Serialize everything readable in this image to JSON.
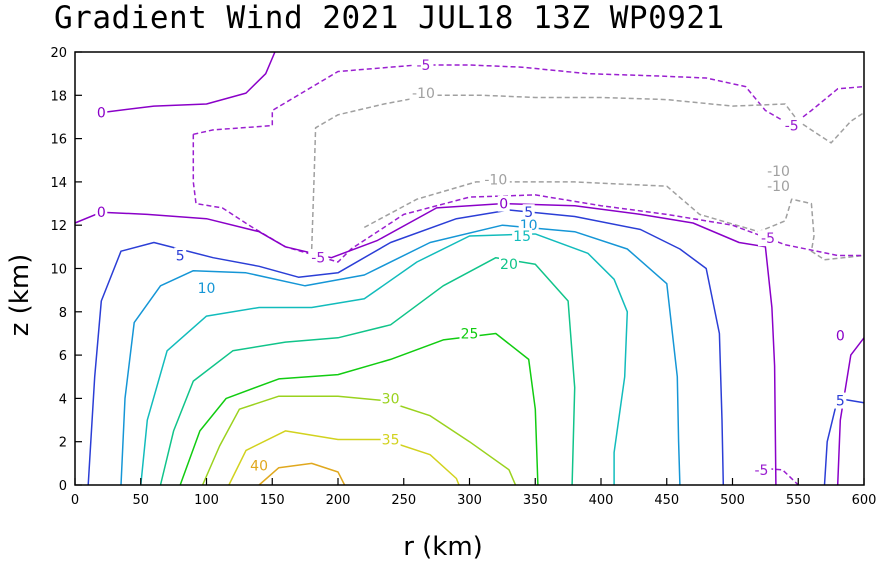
{
  "chart_data": {
    "type": "contour",
    "title": "Gradient Wind 2021 JUL18 13Z   WP0921",
    "xlabel": "r (km)",
    "ylabel": "z (km)",
    "xlim": [
      0,
      600
    ],
    "ylim": [
      0,
      20
    ],
    "x_ticks": [
      "0",
      "50",
      "100",
      "150",
      "200",
      "250",
      "300",
      "350",
      "400",
      "450",
      "500",
      "550",
      "600"
    ],
    "y_ticks": [
      "0",
      "2",
      "4",
      "6",
      "8",
      "10",
      "12",
      "14",
      "16",
      "18",
      "20"
    ],
    "grid": false,
    "contour_levels": [
      {
        "level": -10,
        "label": "-10",
        "color": "#a0a0a0",
        "dashed": true
      },
      {
        "level": -5,
        "label": "-5",
        "color": "#9a1fd0",
        "dashed": true
      },
      {
        "level": 0,
        "label": "0",
        "color": "#8a00c8",
        "dashed": false
      },
      {
        "level": 5,
        "label": "5",
        "color": "#2b3ed6",
        "dashed": false
      },
      {
        "level": 10,
        "label": "10",
        "color": "#1596d6",
        "dashed": false
      },
      {
        "level": 15,
        "label": "15",
        "color": "#12bcbc",
        "dashed": false
      },
      {
        "level": 20,
        "label": "20",
        "color": "#10c48a",
        "dashed": false
      },
      {
        "level": 25,
        "label": "25",
        "color": "#11cc11",
        "dashed": false
      },
      {
        "level": 30,
        "label": "30",
        "color": "#9ad21e",
        "dashed": false
      },
      {
        "level": 35,
        "label": "35",
        "color": "#d2d21e",
        "dashed": false
      },
      {
        "level": 40,
        "label": "40",
        "color": "#e0a81e",
        "dashed": false
      }
    ],
    "contours": [
      {
        "level": 0,
        "points": [
          [
            20,
            17.2
          ],
          [
            60,
            17.5
          ],
          [
            100,
            17.6
          ],
          [
            130,
            18.1
          ],
          [
            145,
            19.0
          ],
          [
            152,
            20
          ]
        ]
      },
      {
        "level": -5,
        "points": [
          [
            90,
            16.2
          ],
          [
            105,
            16.4
          ],
          [
            150,
            16.6
          ],
          [
            150,
            17.3
          ],
          [
            200,
            19.1
          ],
          [
            260,
            19.4
          ],
          [
            300,
            19.4
          ],
          [
            340,
            19.3
          ],
          [
            390,
            19.0
          ],
          [
            440,
            18.9
          ],
          [
            480,
            18.8
          ],
          [
            510,
            18.4
          ],
          [
            525,
            17.3
          ],
          [
            545,
            16.6
          ],
          [
            560,
            17.3
          ],
          [
            580,
            18.3
          ],
          [
            600,
            18.4
          ]
        ]
      },
      {
        "level": -10,
        "points": [
          [
            180,
            10.9
          ],
          [
            182,
            14.5
          ],
          [
            183,
            16.5
          ],
          [
            200,
            17.1
          ],
          [
            235,
            17.6
          ],
          [
            270,
            18.0
          ],
          [
            310,
            18.0
          ],
          [
            350,
            17.9
          ],
          [
            400,
            17.9
          ],
          [
            450,
            17.8
          ],
          [
            500,
            17.5
          ],
          [
            540,
            17.6
          ],
          [
            550,
            16.8
          ],
          [
            575,
            15.8
          ],
          [
            590,
            16.8
          ],
          [
            600,
            17.2
          ]
        ]
      },
      {
        "level": -10,
        "points": [
          [
            220,
            11.9
          ],
          [
            260,
            13.2
          ],
          [
            305,
            14.0
          ],
          [
            380,
            14.0
          ],
          [
            450,
            13.8
          ],
          [
            475,
            12.5
          ],
          [
            520,
            11.7
          ],
          [
            540,
            12.2
          ],
          [
            545,
            13.2
          ],
          [
            560,
            13.0
          ],
          [
            562,
            11.5
          ],
          [
            560,
            10.8
          ],
          [
            570,
            10.4
          ],
          [
            600,
            10.6
          ]
        ]
      },
      {
        "level": -5,
        "points": [
          [
            90,
            16.2
          ],
          [
            90,
            14.0
          ],
          [
            92,
            13.0
          ],
          [
            112,
            12.8
          ],
          [
            135,
            11.9
          ],
          [
            160,
            11.0
          ],
          [
            200,
            10.3
          ],
          [
            210,
            10.9
          ],
          [
            250,
            12.5
          ],
          [
            300,
            13.3
          ],
          [
            350,
            13.4
          ],
          [
            400,
            12.9
          ],
          [
            450,
            12.5
          ],
          [
            500,
            12.0
          ],
          [
            540,
            11.1
          ],
          [
            580,
            10.6
          ],
          [
            600,
            10.6
          ]
        ]
      },
      {
        "level": -5,
        "points": [
          [
            515,
            0.8
          ],
          [
            538,
            0.7
          ],
          [
            550,
            0.0
          ]
        ]
      },
      {
        "level": 0,
        "points": [
          [
            0,
            12.1
          ],
          [
            20,
            12.6
          ],
          [
            55,
            12.5
          ],
          [
            100,
            12.3
          ],
          [
            140,
            11.7
          ],
          [
            160,
            11.0
          ],
          [
            195,
            10.5
          ],
          [
            230,
            11.3
          ],
          [
            275,
            12.8
          ],
          [
            325,
            13.0
          ],
          [
            380,
            12.9
          ],
          [
            430,
            12.5
          ],
          [
            470,
            12.1
          ],
          [
            505,
            11.2
          ],
          [
            525,
            11.0
          ],
          [
            530,
            8.2
          ],
          [
            532,
            5.5
          ],
          [
            533,
            0.0
          ]
        ]
      },
      {
        "level": 0,
        "points": [
          [
            580,
            0.0
          ],
          [
            582,
            3.0
          ],
          [
            590,
            6.0
          ],
          [
            600,
            6.8
          ]
        ]
      },
      {
        "level": 5,
        "points": [
          [
            10,
            0.0
          ],
          [
            15,
            5.0
          ],
          [
            20,
            8.5
          ],
          [
            35,
            10.8
          ],
          [
            60,
            11.2
          ],
          [
            105,
            10.5
          ],
          [
            140,
            10.1
          ],
          [
            170,
            9.6
          ],
          [
            200,
            9.8
          ],
          [
            240,
            11.2
          ],
          [
            290,
            12.3
          ],
          [
            330,
            12.7
          ],
          [
            380,
            12.4
          ],
          [
            430,
            11.8
          ],
          [
            460,
            10.9
          ],
          [
            480,
            10.0
          ],
          [
            490,
            7.0
          ],
          [
            492,
            3.0
          ],
          [
            493,
            0.0
          ]
        ]
      },
      {
        "level": 5,
        "points": [
          [
            570,
            0.0
          ],
          [
            572,
            2.0
          ],
          [
            580,
            4.0
          ],
          [
            600,
            3.8
          ]
        ]
      },
      {
        "level": 10,
        "points": [
          [
            35,
            0.0
          ],
          [
            38,
            4.0
          ],
          [
            45,
            7.5
          ],
          [
            65,
            9.2
          ],
          [
            90,
            9.9
          ],
          [
            130,
            9.8
          ],
          [
            175,
            9.2
          ],
          [
            220,
            9.7
          ],
          [
            270,
            11.2
          ],
          [
            325,
            12.0
          ],
          [
            380,
            11.7
          ],
          [
            420,
            10.9
          ],
          [
            450,
            9.3
          ],
          [
            458,
            5.0
          ],
          [
            459,
            2.0
          ],
          [
            460,
            0.0
          ]
        ]
      },
      {
        "level": 15,
        "points": [
          [
            50,
            0.0
          ],
          [
            55,
            3.0
          ],
          [
            70,
            6.2
          ],
          [
            100,
            7.8
          ],
          [
            140,
            8.2
          ],
          [
            180,
            8.2
          ],
          [
            220,
            8.6
          ],
          [
            260,
            10.3
          ],
          [
            300,
            11.5
          ],
          [
            350,
            11.6
          ],
          [
            390,
            10.7
          ],
          [
            410,
            9.5
          ],
          [
            420,
            8.0
          ],
          [
            418,
            5.0
          ],
          [
            410,
            1.5
          ],
          [
            410,
            0.0
          ]
        ]
      },
      {
        "level": 20,
        "points": [
          [
            65,
            0.0
          ],
          [
            75,
            2.5
          ],
          [
            90,
            4.8
          ],
          [
            120,
            6.2
          ],
          [
            160,
            6.6
          ],
          [
            200,
            6.8
          ],
          [
            240,
            7.4
          ],
          [
            280,
            9.2
          ],
          [
            320,
            10.5
          ],
          [
            350,
            10.2
          ],
          [
            375,
            8.5
          ],
          [
            380,
            4.5
          ],
          [
            378,
            0.0
          ]
        ]
      },
      {
        "level": 25,
        "points": [
          [
            80,
            0.0
          ],
          [
            95,
            2.5
          ],
          [
            115,
            4.0
          ],
          [
            155,
            4.9
          ],
          [
            200,
            5.1
          ],
          [
            240,
            5.8
          ],
          [
            280,
            6.7
          ],
          [
            320,
            7.0
          ],
          [
            345,
            5.8
          ],
          [
            350,
            3.5
          ],
          [
            352,
            0.0
          ]
        ]
      },
      {
        "level": 30,
        "points": [
          [
            97,
            0.0
          ],
          [
            110,
            1.8
          ],
          [
            125,
            3.5
          ],
          [
            155,
            4.1
          ],
          [
            200,
            4.1
          ],
          [
            235,
            3.9
          ],
          [
            270,
            3.2
          ],
          [
            300,
            2.0
          ],
          [
            330,
            0.7
          ],
          [
            335,
            0.0
          ]
        ]
      },
      {
        "level": 35,
        "points": [
          [
            117,
            0.0
          ],
          [
            130,
            1.6
          ],
          [
            160,
            2.5
          ],
          [
            200,
            2.1
          ],
          [
            235,
            2.1
          ],
          [
            270,
            1.4
          ],
          [
            290,
            0.3
          ],
          [
            292,
            0.0
          ]
        ]
      },
      {
        "level": 40,
        "points": [
          [
            140,
            0.0
          ],
          [
            155,
            0.8
          ],
          [
            180,
            1.0
          ],
          [
            200,
            0.6
          ],
          [
            205,
            0.0
          ]
        ]
      }
    ],
    "contour_labels": [
      {
        "text": "0",
        "level": 0,
        "x": 20,
        "y": 17.2
      },
      {
        "text": "-5",
        "level": -5,
        "x": 265,
        "y": 19.4
      },
      {
        "text": "-10",
        "level": -10,
        "x": 265,
        "y": 18.1
      },
      {
        "text": "-5",
        "level": -5,
        "x": 545,
        "y": 16.6
      },
      {
        "text": "-10",
        "level": -10,
        "x": 535,
        "y": 14.5
      },
      {
        "text": "-10",
        "level": -10,
        "x": 535,
        "y": 13.8
      },
      {
        "text": "-10",
        "level": -10,
        "x": 320,
        "y": 14.1
      },
      {
        "text": "0",
        "level": 0,
        "x": 20,
        "y": 12.6
      },
      {
        "text": "-5",
        "level": -5,
        "x": 527,
        "y": 11.4
      },
      {
        "text": "0",
        "level": 0,
        "x": 326,
        "y": 13.0
      },
      {
        "text": "5",
        "level": 5,
        "x": 345,
        "y": 12.6
      },
      {
        "text": "10",
        "level": 10,
        "x": 345,
        "y": 12.0
      },
      {
        "text": "15",
        "level": 15,
        "x": 340,
        "y": 11.5
      },
      {
        "text": "5",
        "level": 5,
        "x": 80,
        "y": 10.6
      },
      {
        "text": "-5",
        "level": -5,
        "x": 185,
        "y": 10.5
      },
      {
        "text": "20",
        "level": 20,
        "x": 330,
        "y": 10.2
      },
      {
        "text": "10",
        "level": 10,
        "x": 100,
        "y": 9.1
      },
      {
        "text": "25",
        "level": 25,
        "x": 300,
        "y": 7.0
      },
      {
        "text": "0",
        "level": 0,
        "x": 582,
        "y": 6.9
      },
      {
        "text": "30",
        "level": 30,
        "x": 240,
        "y": 4.0
      },
      {
        "text": "5",
        "level": 5,
        "x": 582,
        "y": 3.9
      },
      {
        "text": "35",
        "level": 35,
        "x": 240,
        "y": 2.1
      },
      {
        "text": "40",
        "level": 40,
        "x": 140,
        "y": 0.9
      },
      {
        "text": "-5",
        "level": -5,
        "x": 522,
        "y": 0.7
      }
    ]
  }
}
